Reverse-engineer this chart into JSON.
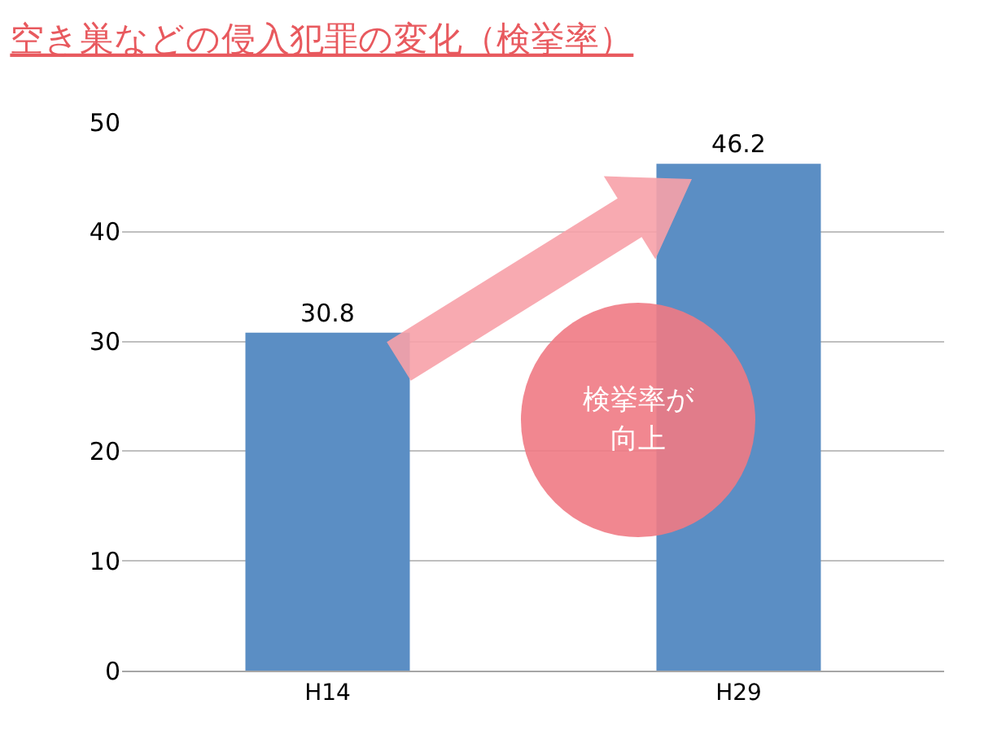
{
  "chart_data": {
    "type": "bar",
    "title": "空き巣などの侵入犯罪の変化（検挙率）",
    "categories": [
      "H14",
      "H29"
    ],
    "values": [
      30.8,
      46.2
    ],
    "color": "#5b8ec4",
    "ylim": [
      0,
      50
    ],
    "yticks": [
      0,
      10,
      20,
      30,
      40,
      50
    ],
    "grid": "y",
    "data_labels": true,
    "annotations": [
      "検挙率が",
      "向上"
    ]
  }
}
